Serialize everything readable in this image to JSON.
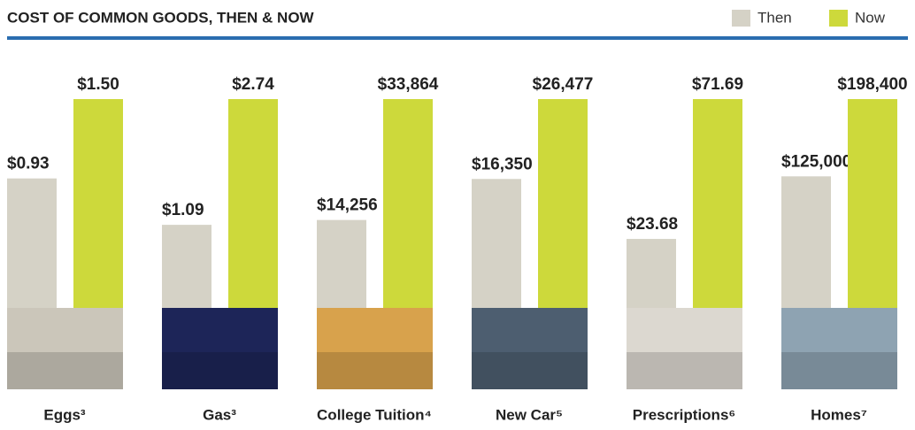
{
  "chart_data": {
    "type": "bar",
    "title": "COST OF COMMON GOODS, THEN & NOW",
    "categories": [
      "Eggs³",
      "Gas³",
      "College Tuition⁴",
      "New Car⁵",
      "Prescriptions⁶",
      "Homes⁷"
    ],
    "series": [
      {
        "name": "Then",
        "color": "#d5d2c6",
        "values": [
          0.93,
          1.09,
          14256,
          16350,
          23.68,
          125000
        ],
        "value_labels": [
          "$0.93",
          "$1.09",
          "$14,256",
          "$16,350",
          "$23.68",
          "$125,000"
        ]
      },
      {
        "name": "Now",
        "color": "#cdd93b",
        "values": [
          1.5,
          2.74,
          33864,
          26477,
          71.69,
          198400
        ],
        "value_labels": [
          "$1.50",
          "$2.74",
          "$33,864",
          "$26,477",
          "$71.69",
          "$198,400"
        ]
      }
    ],
    "legend": "top-right"
  }
}
